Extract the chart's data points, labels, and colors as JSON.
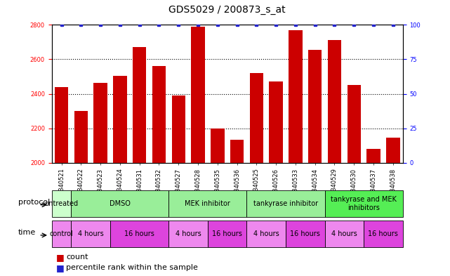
{
  "title": "GDS5029 / 200873_s_at",
  "samples": [
    "GSM1340521",
    "GSM1340522",
    "GSM1340523",
    "GSM1340524",
    "GSM1340531",
    "GSM1340532",
    "GSM1340527",
    "GSM1340528",
    "GSM1340535",
    "GSM1340536",
    "GSM1340525",
    "GSM1340526",
    "GSM1340533",
    "GSM1340534",
    "GSM1340529",
    "GSM1340530",
    "GSM1340537",
    "GSM1340538"
  ],
  "bar_values": [
    2440,
    2300,
    2465,
    2505,
    2670,
    2560,
    2390,
    2790,
    2200,
    2135,
    2520,
    2470,
    2770,
    2655,
    2710,
    2450,
    2080,
    2145
  ],
  "percentile_values": [
    100,
    100,
    100,
    100,
    100,
    100,
    100,
    100,
    100,
    100,
    100,
    100,
    100,
    100,
    100,
    100,
    100,
    100
  ],
  "bar_color": "#cc0000",
  "percentile_color": "#2222cc",
  "ylim_left": [
    2000,
    2800
  ],
  "ylim_right": [
    0,
    100
  ],
  "yticks_left": [
    2000,
    2200,
    2400,
    2600,
    2800
  ],
  "yticks_right": [
    0,
    25,
    50,
    75,
    100
  ],
  "protocol_groups": [
    {
      "label": "untreated",
      "start": 0,
      "end": 1,
      "color": "#ccffcc"
    },
    {
      "label": "DMSO",
      "start": 1,
      "end": 6,
      "color": "#99ee99"
    },
    {
      "label": "MEK inhibitor",
      "start": 6,
      "end": 10,
      "color": "#99ee99"
    },
    {
      "label": "tankyrase inhibitor",
      "start": 10,
      "end": 14,
      "color": "#99ee99"
    },
    {
      "label": "tankyrase and MEK\ninhibitors",
      "start": 14,
      "end": 18,
      "color": "#55ee55"
    }
  ],
  "time_groups": [
    {
      "label": "control",
      "start": 0,
      "end": 1,
      "color": "#ee88ee"
    },
    {
      "label": "4 hours",
      "start": 1,
      "end": 3,
      "color": "#ee88ee"
    },
    {
      "label": "16 hours",
      "start": 3,
      "end": 6,
      "color": "#dd44dd"
    },
    {
      "label": "4 hours",
      "start": 6,
      "end": 8,
      "color": "#ee88ee"
    },
    {
      "label": "16 hours",
      "start": 8,
      "end": 10,
      "color": "#dd44dd"
    },
    {
      "label": "4 hours",
      "start": 10,
      "end": 12,
      "color": "#ee88ee"
    },
    {
      "label": "16 hours",
      "start": 12,
      "end": 14,
      "color": "#dd44dd"
    },
    {
      "label": "4 hours",
      "start": 14,
      "end": 16,
      "color": "#ee88ee"
    },
    {
      "label": "16 hours",
      "start": 16,
      "end": 18,
      "color": "#dd44dd"
    }
  ],
  "background_color": "#ffffff",
  "n_samples": 18,
  "ymin": 2000,
  "ymax": 2800,
  "grid_lines": [
    2200,
    2400,
    2600
  ],
  "title_fontsize": 10,
  "tick_fontsize": 6,
  "label_fontsize": 8,
  "row_fontsize": 7,
  "legend_fontsize": 8
}
